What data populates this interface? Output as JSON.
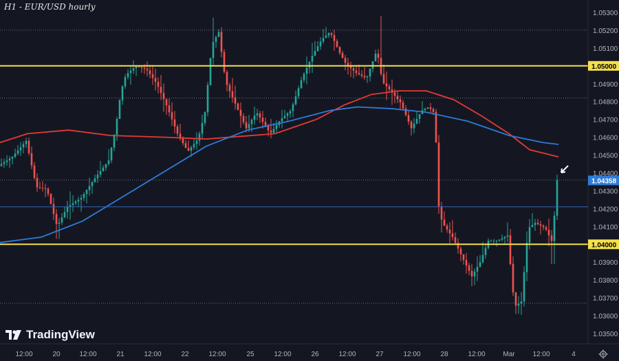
{
  "title": "H1 - EUR/USD hourly",
  "brand": {
    "name": "TradingView"
  },
  "colors": {
    "background": "#141722",
    "up": "#26a69a",
    "down": "#ef5350",
    "ma_red": "#e53935",
    "ma_blue": "#2f7bd8",
    "level": "#f4e04d",
    "price_tag": "#2f7bd8",
    "grid_dotted": "#3a3f4d"
  },
  "chart_data": {
    "type": "candlestick",
    "symbol": "EUR/USD",
    "timeframe": "hourly",
    "ylim": [
      1.035,
      1.0535
    ],
    "y_ticks": [
      "1.05300",
      "1.05200",
      "1.05100",
      "1.04900",
      "1.04800",
      "1.04700",
      "1.04600",
      "1.04500",
      "1.04400",
      "1.04300",
      "1.04200",
      "1.04100",
      "1.03900",
      "1.03800",
      "1.03700",
      "1.03600",
      "1.03500"
    ],
    "x_ticks": [
      "12:00",
      "20",
      "12:00",
      "21",
      "12:00",
      "22",
      "12:00",
      "25",
      "12:00",
      "26",
      "12:00",
      "27",
      "12:00",
      "28",
      "12:00",
      "Mar",
      "12:00",
      "4"
    ],
    "horizontal_levels": [
      {
        "value": 1.05,
        "label": "1.05000",
        "style": "solid"
      },
      {
        "value": 1.04,
        "label": "1.04000",
        "style": "solid"
      }
    ],
    "dotted_lines": [
      1.052,
      1.0482,
      1.0436,
      1.0421,
      1.0367
    ],
    "current_price": {
      "value": 1.04358,
      "label": "1.04358"
    },
    "moving_averages": [
      {
        "color": "red",
        "points": [
          [
            0,
            1.0457
          ],
          [
            40,
            1.0462
          ],
          [
            100,
            1.0464
          ],
          [
            160,
            1.0461
          ],
          [
            240,
            1.046
          ],
          [
            300,
            1.0459
          ],
          [
            400,
            1.0462
          ],
          [
            460,
            1.047
          ],
          [
            500,
            1.0478
          ],
          [
            540,
            1.0484
          ],
          [
            580,
            1.0486
          ],
          [
            620,
            1.0486
          ],
          [
            660,
            1.0481
          ],
          [
            700,
            1.0472
          ],
          [
            740,
            1.0462
          ],
          [
            770,
            1.0453
          ],
          [
            812,
            1.0449
          ]
        ]
      },
      {
        "color": "blue",
        "points": [
          [
            0,
            1.0401
          ],
          [
            60,
            1.0404
          ],
          [
            120,
            1.0413
          ],
          [
            180,
            1.0427
          ],
          [
            240,
            1.0441
          ],
          [
            300,
            1.0455
          ],
          [
            360,
            1.0464
          ],
          [
            420,
            1.0469
          ],
          [
            480,
            1.0475
          ],
          [
            520,
            1.0477
          ],
          [
            570,
            1.0476
          ],
          [
            620,
            1.0474
          ],
          [
            680,
            1.0469
          ],
          [
            740,
            1.0461
          ],
          [
            790,
            1.0457
          ],
          [
            812,
            1.0456
          ]
        ]
      }
    ],
    "price_path": [
      [
        0,
        1.0444
      ],
      [
        20,
        1.0449
      ],
      [
        40,
        1.0458
      ],
      [
        55,
        1.0432
      ],
      [
        70,
        1.0431
      ],
      [
        85,
        1.041
      ],
      [
        100,
        1.0421
      ],
      [
        120,
        1.0426
      ],
      [
        140,
        1.0437
      ],
      [
        160,
        1.0447
      ],
      [
        170,
        1.0465
      ],
      [
        178,
        1.0486
      ],
      [
        185,
        1.0495
      ],
      [
        200,
        1.05
      ],
      [
        215,
        1.0498
      ],
      [
        230,
        1.049
      ],
      [
        245,
        1.0477
      ],
      [
        260,
        1.0462
      ],
      [
        275,
        1.0452
      ],
      [
        290,
        1.0459
      ],
      [
        300,
        1.0474
      ],
      [
        310,
        1.0512
      ],
      [
        320,
        1.0519
      ],
      [
        330,
        1.0491
      ],
      [
        345,
        1.0478
      ],
      [
        360,
        1.0465
      ],
      [
        375,
        1.0474
      ],
      [
        395,
        1.0462
      ],
      [
        410,
        1.047
      ],
      [
        425,
        1.0475
      ],
      [
        440,
        1.0492
      ],
      [
        455,
        1.0505
      ],
      [
        470,
        1.0515
      ],
      [
        482,
        1.0519
      ],
      [
        495,
        1.0508
      ],
      [
        505,
        1.0501
      ],
      [
        520,
        1.0496
      ],
      [
        535,
        1.0493
      ],
      [
        550,
        1.0509
      ],
      [
        558,
        1.0491
      ],
      [
        570,
        1.0486
      ],
      [
        585,
        1.0479
      ],
      [
        600,
        1.0465
      ],
      [
        615,
        1.0475
      ],
      [
        625,
        1.0477
      ],
      [
        635,
        1.0473
      ],
      [
        638,
        1.0425
      ],
      [
        645,
        1.0412
      ],
      [
        660,
        1.0404
      ],
      [
        675,
        1.0392
      ],
      [
        688,
        1.0382
      ],
      [
        700,
        1.039
      ],
      [
        712,
        1.0402
      ],
      [
        725,
        1.0402
      ],
      [
        740,
        1.0405
      ],
      [
        750,
        1.0365
      ],
      [
        760,
        1.0368
      ],
      [
        770,
        1.0409
      ],
      [
        780,
        1.0412
      ],
      [
        795,
        1.0409
      ],
      [
        805,
        1.0401
      ],
      [
        812,
        1.0436
      ]
    ]
  }
}
